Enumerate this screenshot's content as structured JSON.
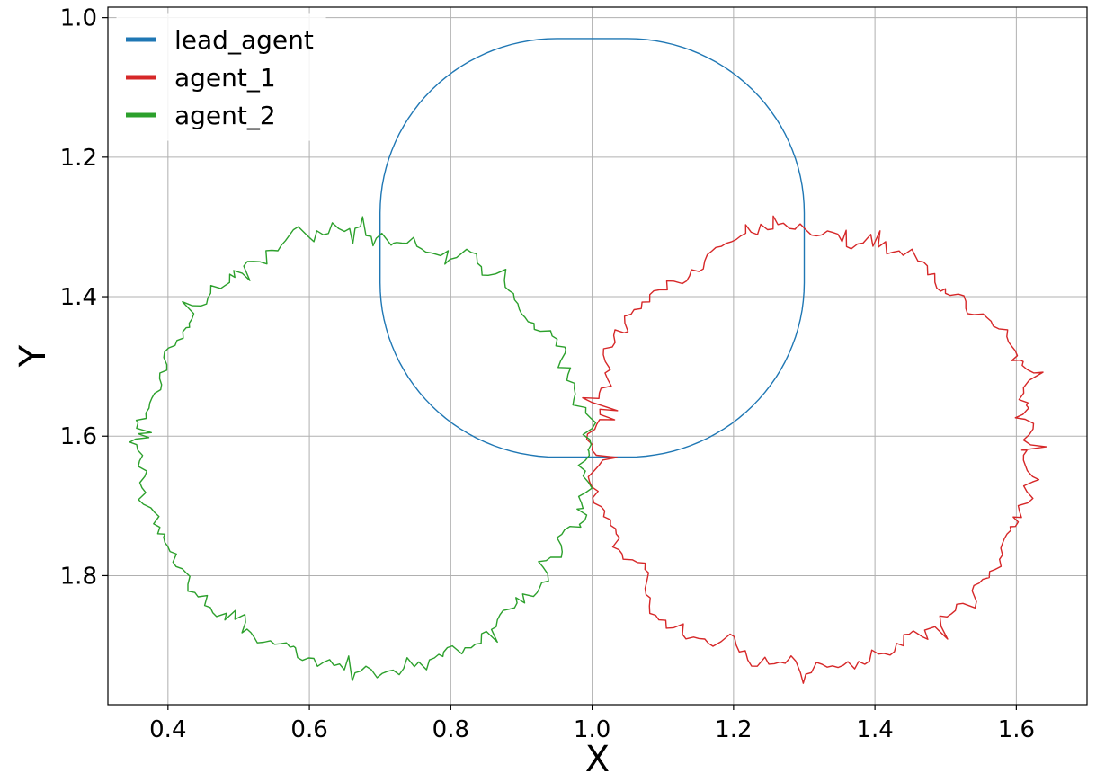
{
  "chart_data": {
    "type": "line",
    "title": "",
    "xlabel": "X",
    "ylabel": "Y",
    "xlim": [
      0.315,
      1.7
    ],
    "ylim": [
      1.985,
      0.985
    ],
    "y_inverted": true,
    "grid": true,
    "legend_position": "top-left",
    "xticks": [
      0.4,
      0.6,
      0.8,
      1.0,
      1.2,
      1.4,
      1.6
    ],
    "xtick_labels": [
      "0.4",
      "0.6",
      "0.8",
      "1.0",
      "1.2",
      "1.4",
      "1.6"
    ],
    "yticks": [
      1.0,
      1.2,
      1.4,
      1.6,
      1.8
    ],
    "ytick_labels": [
      "1.0",
      "1.2",
      "1.4",
      "1.6",
      "1.8"
    ],
    "series": [
      {
        "name": "lead_agent",
        "color": "#1f77b4",
        "shape": "rounded-square loop",
        "center": [
          1.0,
          1.33
        ],
        "half_width": 0.3,
        "corner_radius": 0.25,
        "x_range": [
          0.7,
          1.3
        ],
        "y_range": [
          1.03,
          1.63
        ]
      },
      {
        "name": "agent_1",
        "color": "#d62728",
        "shape": "noisy circular loop",
        "center": [
          1.31,
          1.62
        ],
        "radius": 0.31,
        "x_range": [
          0.99,
          1.64
        ],
        "y_range": [
          1.3,
          1.94
        ]
      },
      {
        "name": "agent_2",
        "color": "#2ca02c",
        "shape": "noisy circular loop",
        "center": [
          0.68,
          1.62
        ],
        "radius": 0.31,
        "x_range": [
          0.37,
          1.02
        ],
        "y_range": [
          1.3,
          1.94
        ]
      }
    ]
  }
}
